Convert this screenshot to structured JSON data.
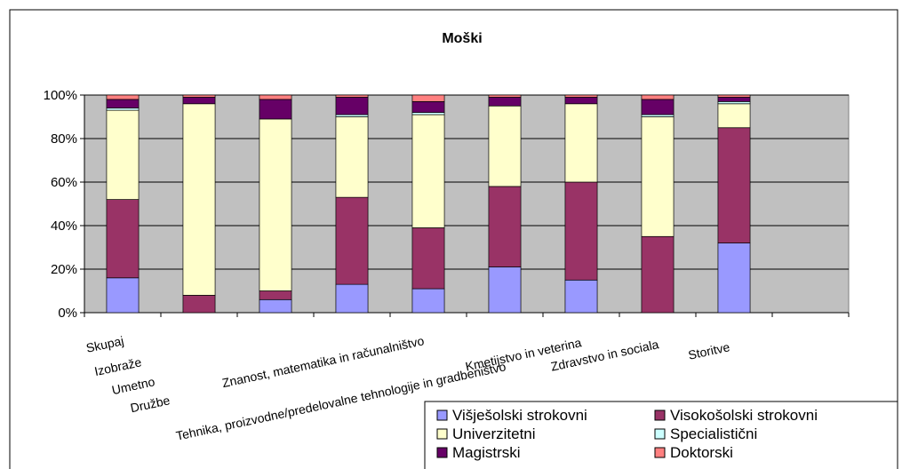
{
  "chart_data": {
    "type": "stacked_bar_100",
    "title": "Moški",
    "categories": [
      "Skupaj",
      "Izobraže",
      "Umetno",
      "Družbe",
      "Znanost, matematika in računalništvo",
      "Tehnika, proizvodne/predelovalne tehnologije in gradbeništvo",
      "Kmetijstvo in veterina",
      "Zdravstvo in sociala",
      "Storitve",
      null
    ],
    "series": [
      {
        "name": "Višješolski strokovni",
        "color": "#9999FF",
        "values": [
          16,
          0,
          6,
          13,
          11,
          21,
          15,
          0,
          32,
          null
        ]
      },
      {
        "name": "Visokošolski strokovni",
        "color": "#993366",
        "values": [
          36,
          8,
          4,
          40,
          28,
          37,
          45,
          35,
          53,
          null
        ]
      },
      {
        "name": "Univerzitetni",
        "color": "#FFFFCC",
        "values": [
          41,
          88,
          79,
          37,
          52,
          37,
          36,
          55,
          11,
          null
        ]
      },
      {
        "name": "Specialistični",
        "color": "#CCFFFF",
        "values": [
          1,
          0,
          0,
          1,
          1,
          0,
          0,
          1,
          1,
          null
        ]
      },
      {
        "name": "Magistrski",
        "color": "#660066",
        "values": [
          4,
          3,
          9,
          8,
          5,
          4,
          3,
          7,
          2,
          null
        ]
      },
      {
        "name": "Doktorski",
        "color": "#FF8080",
        "values": [
          2,
          1,
          2,
          1,
          3,
          1,
          1,
          2,
          1,
          null
        ]
      }
    ],
    "ylim": [
      0,
      100
    ],
    "yticks": [
      {
        "value": 0,
        "label": "0%"
      },
      {
        "value": 20,
        "label": "20%"
      },
      {
        "value": 40,
        "label": "40%"
      },
      {
        "value": 60,
        "label": "60%"
      },
      {
        "value": 80,
        "label": "80%"
      },
      {
        "value": 100,
        "label": "100%"
      }
    ],
    "grid": true,
    "legend": "bottom-right"
  }
}
